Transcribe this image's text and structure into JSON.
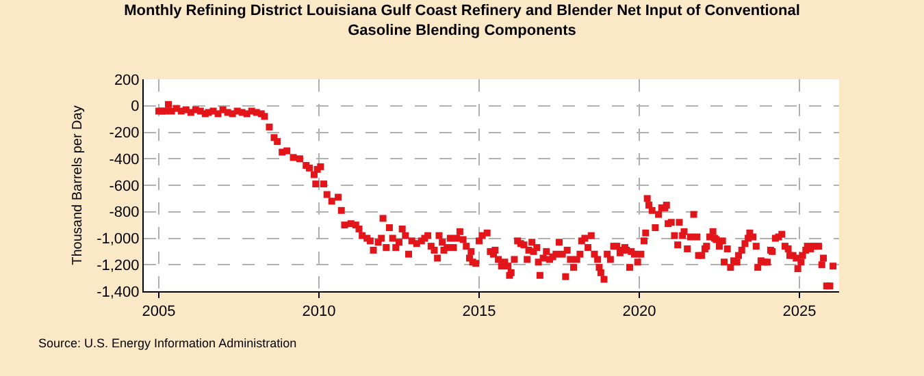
{
  "chart_data": {
    "type": "scatter",
    "title": "Monthly Refining District Louisiana Gulf Coast Refinery and Blender Net Input of Conventional Gasoline Blending Components",
    "ylabel": "Thousand Barrels per Day",
    "annotations": [
      "Source: U.S. Energy Information Administration"
    ],
    "x": [
      2005.0,
      2005.1,
      2005.2,
      2005.3,
      2005.4,
      2005.55,
      2005.7,
      2005.85,
      2006.0,
      2006.15,
      2006.3,
      2006.45,
      2006.55,
      2006.7,
      2006.85,
      2007.0,
      2007.15,
      2007.3,
      2007.45,
      2007.6,
      2007.75,
      2007.9,
      2008.05,
      2008.2,
      2008.3,
      2008.45,
      2008.6,
      2008.7,
      2008.85,
      2009.0,
      2009.2,
      2009.4,
      2009.6,
      2009.7,
      2009.85,
      2009.9,
      2009.95,
      2010.05,
      2010.15,
      2010.25,
      2010.4,
      2010.6,
      2010.7,
      2010.8,
      2011.0,
      2011.15,
      2011.25,
      2011.35,
      2011.5,
      2011.6,
      2011.7,
      2011.85,
      2011.95,
      2012.0,
      2012.1,
      2012.2,
      2012.3,
      2012.4,
      2012.5,
      2012.6,
      2012.7,
      2012.8,
      2012.9,
      2013.05,
      2013.2,
      2013.3,
      2013.4,
      2013.5,
      2013.6,
      2013.7,
      2013.75,
      2013.85,
      2013.9,
      2014.0,
      2014.1,
      2014.2,
      2014.3,
      2014.4,
      2014.5,
      2014.6,
      2014.7,
      2014.75,
      2014.8,
      2014.9,
      2015.0,
      2015.1,
      2015.25,
      2015.35,
      2015.45,
      2015.5,
      2015.6,
      2015.7,
      2015.8,
      2015.9,
      2015.95,
      2016.0,
      2016.1,
      2016.2,
      2016.3,
      2016.4,
      2016.5,
      2016.55,
      2016.65,
      2016.7,
      2016.8,
      2016.85,
      2016.9,
      2017.0,
      2017.1,
      2017.2,
      2017.3,
      2017.4,
      2017.5,
      2017.6,
      2017.7,
      2017.75,
      2017.85,
      2017.95,
      2018.05,
      2018.15,
      2018.2,
      2018.3,
      2018.4,
      2018.5,
      2018.6,
      2018.7,
      2018.75,
      2018.8,
      2018.9,
      2019.0,
      2019.1,
      2019.2,
      2019.3,
      2019.4,
      2019.45,
      2019.55,
      2019.6,
      2019.7,
      2019.75,
      2019.85,
      2019.95,
      2020.05,
      2020.15,
      2020.2,
      2020.25,
      2020.3,
      2020.4,
      2020.5,
      2020.6,
      2020.7,
      2020.8,
      2020.85,
      2020.9,
      2021.0,
      2021.1,
      2021.2,
      2021.25,
      2021.35,
      2021.4,
      2021.5,
      2021.6,
      2021.7,
      2021.8,
      2021.85,
      2021.95,
      2022.05,
      2022.1,
      2022.2,
      2022.3,
      2022.35,
      2022.4,
      2022.5,
      2022.6,
      2022.65,
      2022.75,
      2022.85,
      2022.95,
      2023.05,
      2023.1,
      2023.2,
      2023.3,
      2023.4,
      2023.45,
      2023.55,
      2023.65,
      2023.7,
      2023.8,
      2023.9,
      2024.0,
      2024.1,
      2024.15,
      2024.25,
      2024.35,
      2024.45,
      2024.55,
      2024.65,
      2024.7,
      2024.8,
      2024.9,
      2024.95,
      2025.05,
      2025.1,
      2025.2,
      2025.25,
      2025.35,
      2025.45,
      2025.5,
      2025.6,
      2025.7,
      2025.75,
      2025.85,
      2025.95,
      2026.05
    ],
    "values": [
      -40,
      -40,
      -40,
      10,
      -40,
      -20,
      -40,
      -30,
      -50,
      -30,
      -40,
      -60,
      -50,
      -40,
      -60,
      -30,
      -50,
      -60,
      -40,
      -50,
      -60,
      -40,
      -50,
      -60,
      -80,
      -160,
      -240,
      -270,
      -350,
      -340,
      -390,
      -400,
      -450,
      -470,
      -520,
      -590,
      -480,
      -460,
      -590,
      -670,
      -720,
      -690,
      -790,
      -900,
      -890,
      -900,
      -930,
      -980,
      -1000,
      -1020,
      -1090,
      -1030,
      -1000,
      -850,
      -1070,
      -920,
      -1000,
      -1070,
      -1030,
      -930,
      -980,
      -1120,
      -1020,
      -1040,
      -1020,
      -1000,
      -980,
      -1060,
      -1090,
      -1150,
      -980,
      -1030,
      -1090,
      -1070,
      -1000,
      -1070,
      -1000,
      -950,
      -1010,
      -1060,
      -1150,
      -1100,
      -1180,
      -1190,
      -1020,
      -980,
      -960,
      -1100,
      -1120,
      -1090,
      -1160,
      -1210,
      -1180,
      -1210,
      -1280,
      -1260,
      -1160,
      -1020,
      -1040,
      -1050,
      -1160,
      -1090,
      -1030,
      -1100,
      -1070,
      -1180,
      -1280,
      -1150,
      -1100,
      -1160,
      -1140,
      -1120,
      -1030,
      -1120,
      -1290,
      -1090,
      -1160,
      -1220,
      -1160,
      -1120,
      -1020,
      -1000,
      -1070,
      -980,
      -1120,
      -1160,
      -1220,
      -1260,
      -1310,
      -1120,
      -1160,
      -1060,
      -1060,
      -1110,
      -1090,
      -1070,
      -1090,
      -1220,
      -1100,
      -1120,
      -1180,
      -1120,
      -1020,
      -960,
      -700,
      -750,
      -790,
      -920,
      -820,
      -770,
      -770,
      -750,
      -890,
      -880,
      -980,
      -1050,
      -880,
      -980,
      -950,
      -1080,
      -990,
      -820,
      -990,
      -1130,
      -1130,
      -1080,
      -1060,
      -990,
      -950,
      -1000,
      -1010,
      -1060,
      -1020,
      -1180,
      -1080,
      -1220,
      -1170,
      -1180,
      -1130,
      -1090,
      -1040,
      -1000,
      -960,
      -990,
      -1060,
      -1220,
      -1170,
      -1180,
      -1180,
      -1090,
      -1100,
      -1000,
      -990,
      -970,
      -1060,
      -1080,
      -1130,
      -1130,
      -1150,
      -1230,
      -1180,
      -1130,
      -1090,
      -1060,
      -1080,
      -1060,
      -1060,
      -1060,
      -1200,
      -1150,
      -1360,
      -1360,
      -1210
    ],
    "color": "#e2151b",
    "marker": "square",
    "grid": true,
    "xlim": [
      2004.53,
      2026.24
    ],
    "xticks": [
      2005,
      2010,
      2015,
      2020,
      2025
    ],
    "ylim": [
      -1400,
      200
    ],
    "yticks": [
      200,
      0,
      -200,
      -400,
      -600,
      -800,
      {
        "value": -1000,
        "label": "-1,000"
      },
      {
        "value": -1200,
        "label": "-1,200"
      },
      {
        "value": -1400,
        "label": "-1,400"
      }
    ]
  }
}
